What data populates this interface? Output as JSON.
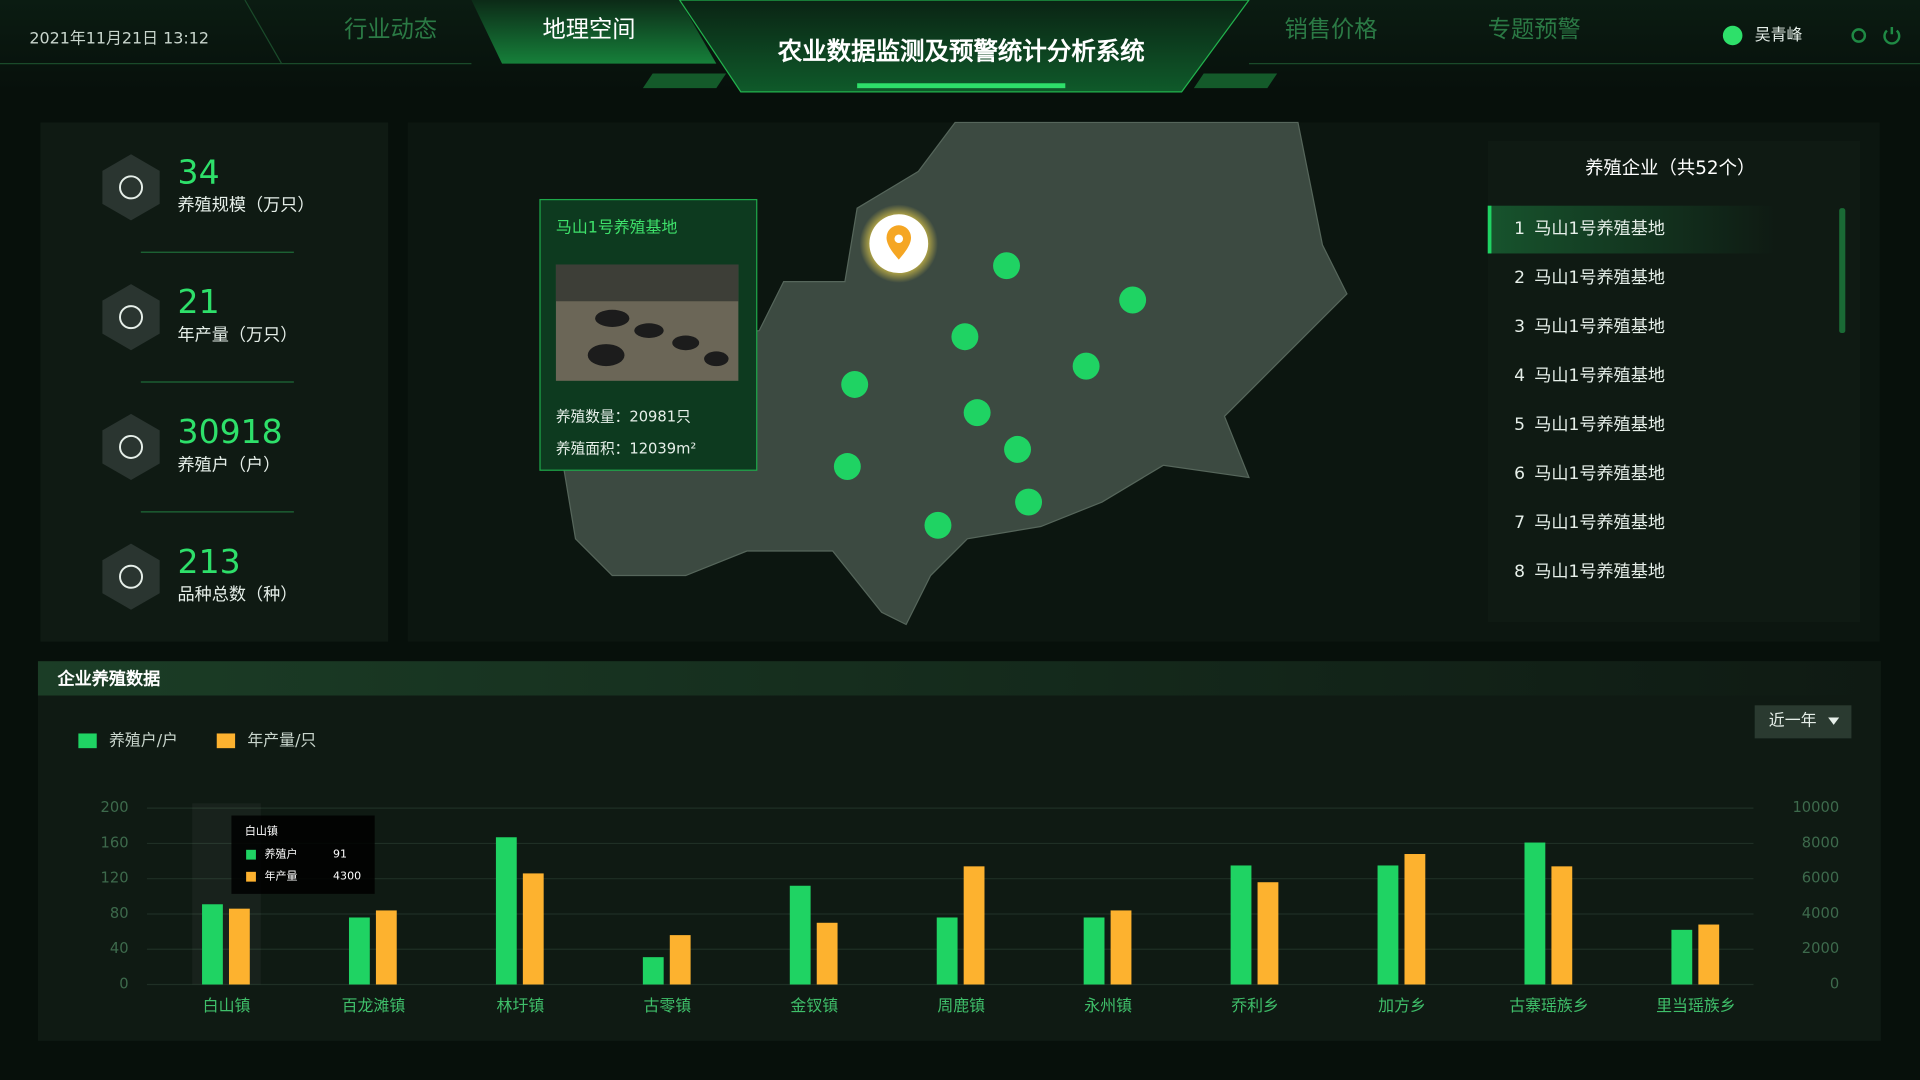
{
  "header": {
    "datetime": "2021年11月21日 13:12",
    "nav": [
      "行业动态",
      "地理空间",
      "销售价格",
      "专题预警"
    ],
    "title": "农业数据监测及预警统计分析系统",
    "user": "吴青峰"
  },
  "stats": [
    {
      "value": 34,
      "label": "养殖规模（万只）"
    },
    {
      "value": 21,
      "label": "年产量（万只）"
    },
    {
      "value": 30918,
      "label": "养殖户（户）"
    },
    {
      "value": 213,
      "label": "品种总数（种）"
    }
  ],
  "map_popup": {
    "title": "马山1号养殖基地",
    "lines": [
      "养殖数量：20981只",
      "养殖面积：12039m²"
    ]
  },
  "enterprise_list": {
    "title": "养殖企业（共52个）",
    "items": [
      {
        "rank": 1,
        "name": "马山1号养殖基地"
      },
      {
        "rank": 2,
        "name": "马山1号养殖基地"
      },
      {
        "rank": 3,
        "name": "马山1号养殖基地"
      },
      {
        "rank": 4,
        "name": "马山1号养殖基地"
      },
      {
        "rank": 5,
        "name": "马山1号养殖基地"
      },
      {
        "rank": 6,
        "name": "马山1号养殖基地"
      },
      {
        "rank": 7,
        "name": "马山1号养殖基地"
      },
      {
        "rank": 8,
        "name": "马山1号养殖基地"
      }
    ]
  },
  "section": {
    "title": "企业养殖数据",
    "period": "近一年"
  },
  "chart_data": {
    "type": "bar",
    "categories": [
      "白山镇",
      "百龙滩镇",
      "林圩镇",
      "古零镇",
      "金钗镇",
      "周鹿镇",
      "永州镇",
      "乔利乡",
      "加方乡",
      "古寨瑶族乡",
      "里当瑶族乡"
    ],
    "series": [
      {
        "name": "养殖户/户",
        "color": "#1fd363",
        "values": [
          91,
          76,
          167,
          31,
          112,
          76,
          76,
          135,
          135,
          161,
          62
        ]
      },
      {
        "name": "年产量/只",
        "color": "#fdb22f",
        "axis": "y2",
        "values": [
          4300,
          4200,
          6300,
          2800,
          3500,
          6700,
          4200,
          5800,
          7400,
          6700,
          3400
        ]
      }
    ],
    "ylim": [
      0,
      200
    ],
    "yticks": [
      0,
      40,
      80,
      120,
      160,
      200
    ],
    "y2lim": [
      0,
      10000
    ],
    "y2ticks": [
      0,
      2000,
      4000,
      6000,
      8000,
      10000
    ],
    "grid": true,
    "tooltip": {
      "category": 0,
      "labels": [
        "养殖户",
        "年产量"
      ]
    }
  }
}
